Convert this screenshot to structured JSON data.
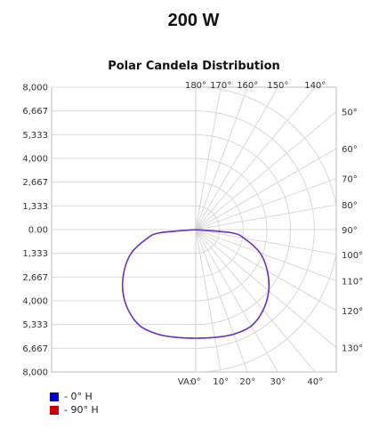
{
  "header": {
    "power_label": "200 W"
  },
  "chart_data": {
    "type": "polar",
    "title": "Polar Candela Distribution",
    "y_ticks_top": [
      "8,000",
      "6,667",
      "5,333",
      "4,000",
      "2,667",
      "1,333"
    ],
    "y_tick_center": "0.00",
    "y_ticks_bottom": [
      "1,333",
      "2,667",
      "4,000",
      "5,333",
      "6,667",
      "8,000"
    ],
    "rmax": 8000,
    "rings": [
      1333,
      2667,
      4000,
      5333,
      6667,
      8000
    ],
    "va_prefix": "VA:",
    "angle_labels_bottom": [
      {
        "angle": 0,
        "text": "0°"
      },
      {
        "angle": 10,
        "text": "10°"
      },
      {
        "angle": 20,
        "text": "20°"
      },
      {
        "angle": 30,
        "text": "30°"
      },
      {
        "angle": 40,
        "text": "40°"
      }
    ],
    "angle_labels_right": [
      {
        "angle": 50,
        "text": "50°"
      },
      {
        "angle": 60,
        "text": "60°"
      },
      {
        "angle": 70,
        "text": "70°"
      },
      {
        "angle": 80,
        "text": "80°"
      },
      {
        "angle": 90,
        "text": "90°"
      },
      {
        "angle": 100,
        "text": "100°"
      },
      {
        "angle": 110,
        "text": "110°"
      },
      {
        "angle": 120,
        "text": "120°"
      },
      {
        "angle": 130,
        "text": "130°"
      }
    ],
    "angle_labels_top": [
      {
        "angle": 180,
        "text": "180°"
      },
      {
        "angle": 170,
        "text": "170°"
      },
      {
        "angle": 160,
        "text": "160°"
      },
      {
        "angle": 150,
        "text": "150°"
      },
      {
        "angle": 140,
        "text": "140°"
      }
    ],
    "series": [
      {
        "name": "- 0° H",
        "color": "#0000cc",
        "points": [
          {
            "angle": 0,
            "value": 6100
          },
          {
            "angle": 10,
            "value": 6150
          },
          {
            "angle": 20,
            "value": 6250
          },
          {
            "angle": 30,
            "value": 6250
          },
          {
            "angle": 40,
            "value": 5900
          },
          {
            "angle": 50,
            "value": 5350
          },
          {
            "angle": 60,
            "value": 4650
          },
          {
            "angle": 70,
            "value": 3850
          },
          {
            "angle": 80,
            "value": 2750
          },
          {
            "angle": 85,
            "value": 2000
          },
          {
            "angle": 90,
            "value": 0
          }
        ]
      },
      {
        "name": "- 90° H",
        "color": "#cc0000",
        "points": [
          {
            "angle": 0,
            "value": 6100
          },
          {
            "angle": 10,
            "value": 6150
          },
          {
            "angle": 20,
            "value": 6250
          },
          {
            "angle": 30,
            "value": 6250
          },
          {
            "angle": 40,
            "value": 5900
          },
          {
            "angle": 50,
            "value": 5350
          },
          {
            "angle": 60,
            "value": 4650
          },
          {
            "angle": 70,
            "value": 3850
          },
          {
            "angle": 80,
            "value": 2750
          },
          {
            "angle": 85,
            "value": 2000
          },
          {
            "angle": 90,
            "value": 0
          }
        ]
      }
    ],
    "curve_color": "#6633cc"
  }
}
